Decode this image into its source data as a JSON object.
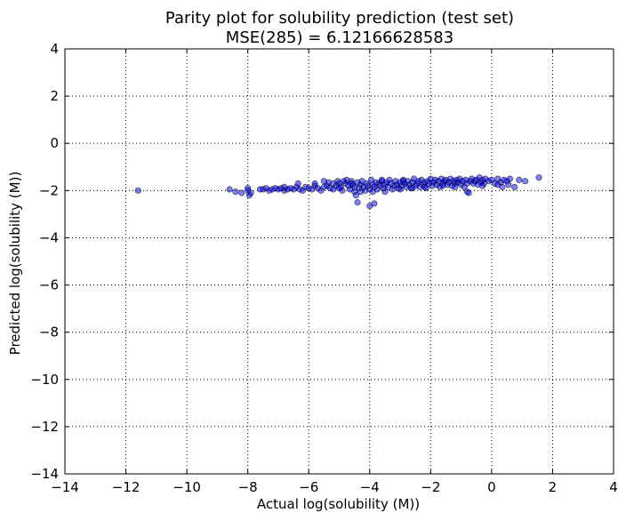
{
  "chart_data": {
    "type": "scatter",
    "title": "Parity plot for solubility prediction (test set)",
    "subtitle": "MSE(285) = 6.12166628583",
    "xlabel": "Actual log(solubility (M))",
    "ylabel": "Predicted log(solubility (M))",
    "xlim": [
      -14,
      4
    ],
    "ylim": [
      -14,
      4
    ],
    "xticks": [
      -14,
      -12,
      -10,
      -8,
      -6,
      -4,
      -2,
      0,
      2,
      4
    ],
    "yticks": [
      -14,
      -12,
      -10,
      -8,
      -6,
      -4,
      -2,
      0,
      2,
      4
    ],
    "xtick_labels": [
      "−14",
      "−12",
      "−10",
      "−8",
      "−6",
      "−4",
      "−2",
      "0",
      "2",
      "4"
    ],
    "ytick_labels": [
      "−14",
      "−12",
      "−10",
      "−8",
      "−6",
      "−4",
      "−2",
      "0",
      "2",
      "4"
    ],
    "grid": true,
    "grid_style": "dotted",
    "marker_color": "#0000ff",
    "marker_alpha": 0.5,
    "edge_color": "#000000",
    "series": [
      {
        "points": [
          [
            -11.6,
            -2.0
          ],
          [
            -8.6,
            -1.95
          ],
          [
            -8.4,
            -2.05
          ],
          [
            -8.2,
            -2.1
          ],
          [
            -8.0,
            -1.9
          ],
          [
            -8.0,
            -2.0
          ],
          [
            -7.95,
            -2.2
          ],
          [
            -7.9,
            -2.1
          ],
          [
            -7.5,
            -1.95
          ],
          [
            -7.4,
            -1.9
          ],
          [
            -7.3,
            -2.0
          ],
          [
            -7.2,
            -1.95
          ],
          [
            -7.1,
            -1.9
          ],
          [
            -7.0,
            -1.95
          ],
          [
            -6.9,
            -1.9
          ],
          [
            -6.8,
            -2.0
          ],
          [
            -6.7,
            -1.95
          ],
          [
            -6.6,
            -1.9
          ],
          [
            -6.5,
            -1.95
          ],
          [
            -6.4,
            -1.85
          ],
          [
            -6.35,
            -1.7
          ],
          [
            -6.3,
            -1.95
          ],
          [
            -6.2,
            -2.0
          ],
          [
            -6.1,
            -1.85
          ],
          [
            -6.0,
            -1.9
          ],
          [
            -5.9,
            -1.95
          ],
          [
            -5.8,
            -1.8
          ],
          [
            -5.7,
            -1.9
          ],
          [
            -5.6,
            -2.0
          ],
          [
            -5.5,
            -1.85
          ],
          [
            -5.4,
            -1.8
          ],
          [
            -5.35,
            -1.65
          ],
          [
            -5.3,
            -1.9
          ],
          [
            -5.2,
            -1.95
          ],
          [
            -5.1,
            -1.8
          ],
          [
            -5.05,
            -1.6
          ],
          [
            -5.0,
            -1.7
          ],
          [
            -4.95,
            -1.85
          ],
          [
            -4.9,
            -2.0
          ],
          [
            -4.8,
            -1.7
          ],
          [
            -4.75,
            -1.55
          ],
          [
            -4.7,
            -1.8
          ],
          [
            -4.65,
            -1.95
          ],
          [
            -4.6,
            -1.6
          ],
          [
            -4.55,
            -1.75
          ],
          [
            -4.5,
            -1.85
          ],
          [
            -4.5,
            -2.05
          ],
          [
            -4.45,
            -2.2
          ],
          [
            -4.4,
            -2.5
          ],
          [
            -4.4,
            -1.65
          ],
          [
            -4.35,
            -1.9
          ],
          [
            -4.3,
            -1.75
          ],
          [
            -4.25,
            -1.6
          ],
          [
            -4.2,
            -1.85
          ],
          [
            -4.15,
            -2.0
          ],
          [
            -4.1,
            -1.7
          ],
          [
            -4.05,
            -1.8
          ],
          [
            -4.0,
            -2.65
          ],
          [
            -4.0,
            -1.95
          ],
          [
            -3.95,
            -1.55
          ],
          [
            -3.9,
            -1.75
          ],
          [
            -3.85,
            -2.55
          ],
          [
            -3.85,
            -1.85
          ],
          [
            -3.8,
            -1.65
          ],
          [
            -3.75,
            -1.95
          ],
          [
            -3.7,
            -1.7
          ],
          [
            -3.65,
            -1.8
          ],
          [
            -3.6,
            -1.6
          ],
          [
            -3.55,
            -1.9
          ],
          [
            -3.5,
            -1.75
          ],
          [
            -3.45,
            -1.65
          ],
          [
            -3.4,
            -1.85
          ],
          [
            -3.35,
            -1.55
          ],
          [
            -3.3,
            -1.7
          ],
          [
            -3.25,
            -1.95
          ],
          [
            -3.2,
            -1.8
          ],
          [
            -3.15,
            -1.6
          ],
          [
            -3.1,
            -1.75
          ],
          [
            -3.05,
            -1.9
          ],
          [
            -3.0,
            -1.65
          ],
          [
            -2.95,
            -1.8
          ],
          [
            -2.9,
            -1.55
          ],
          [
            -2.85,
            -1.7
          ],
          [
            -2.8,
            -1.85
          ],
          [
            -2.75,
            -1.6
          ],
          [
            -2.7,
            -1.75
          ],
          [
            -2.65,
            -1.9
          ],
          [
            -2.6,
            -1.65
          ],
          [
            -2.55,
            -1.5
          ],
          [
            -2.5,
            -1.8
          ],
          [
            -2.45,
            -1.7
          ],
          [
            -2.4,
            -1.6
          ],
          [
            -2.35,
            -1.85
          ],
          [
            -2.3,
            -1.55
          ],
          [
            -2.25,
            -1.75
          ],
          [
            -2.2,
            -1.65
          ],
          [
            -2.15,
            -1.9
          ],
          [
            -2.1,
            -1.6
          ],
          [
            -2.05,
            -1.7
          ],
          [
            -2.0,
            -1.5
          ],
          [
            -1.95,
            -1.8
          ],
          [
            -1.9,
            -1.65
          ],
          [
            -1.85,
            -1.55
          ],
          [
            -1.8,
            -1.75
          ],
          [
            -1.75,
            -1.6
          ],
          [
            -1.7,
            -1.85
          ],
          [
            -1.65,
            -1.5
          ],
          [
            -1.6,
            -1.7
          ],
          [
            -1.55,
            -1.6
          ],
          [
            -1.5,
            -1.55
          ],
          [
            -1.45,
            -1.75
          ],
          [
            -1.4,
            -1.65
          ],
          [
            -1.35,
            -1.5
          ],
          [
            -1.3,
            -1.8
          ],
          [
            -1.25,
            -1.6
          ],
          [
            -1.2,
            -1.7
          ],
          [
            -1.15,
            -1.55
          ],
          [
            -1.1,
            -1.65
          ],
          [
            -1.05,
            -1.5
          ],
          [
            -1.0,
            -1.75
          ],
          [
            -0.95,
            -1.6
          ],
          [
            -0.9,
            -1.85
          ],
          [
            -0.85,
            -1.55
          ],
          [
            -0.8,
            -1.7
          ],
          [
            -0.8,
            -2.05
          ],
          [
            -0.75,
            -2.1
          ],
          [
            -0.7,
            -1.6
          ],
          [
            -0.65,
            -1.5
          ],
          [
            -0.6,
            -1.7
          ],
          [
            -0.55,
            -1.6
          ],
          [
            -0.5,
            -1.55
          ],
          [
            -0.45,
            -1.75
          ],
          [
            -0.4,
            -1.45
          ],
          [
            -0.35,
            -1.65
          ],
          [
            -0.3,
            -1.55
          ],
          [
            -0.25,
            -1.7
          ],
          [
            -0.2,
            -1.5
          ],
          [
            -0.1,
            -1.6
          ],
          [
            0.0,
            -1.55
          ],
          [
            0.1,
            -1.7
          ],
          [
            0.2,
            -1.5
          ],
          [
            0.3,
            -1.65
          ],
          [
            0.35,
            -1.85
          ],
          [
            0.4,
            -1.55
          ],
          [
            0.5,
            -1.6
          ],
          [
            0.55,
            -1.75
          ],
          [
            0.6,
            -1.5
          ],
          [
            0.75,
            -1.85
          ],
          [
            0.9,
            -1.55
          ],
          [
            1.1,
            -1.6
          ],
          [
            1.55,
            -1.45
          ],
          [
            -5.8,
            -1.7
          ],
          [
            -5.5,
            -1.6
          ],
          [
            -5.0,
            -1.9
          ],
          [
            -4.85,
            -1.6
          ],
          [
            -4.3,
            -2.05
          ],
          [
            -3.9,
            -2.05
          ],
          [
            -3.5,
            -2.05
          ],
          [
            -3.0,
            -1.95
          ],
          [
            -2.6,
            -1.9
          ],
          [
            -2.2,
            -1.85
          ],
          [
            -1.6,
            -1.8
          ],
          [
            -1.2,
            -1.85
          ],
          [
            -2.9,
            -1.6
          ],
          [
            -3.6,
            -1.55
          ],
          [
            -4.6,
            -1.7
          ],
          [
            -5.2,
            -1.7
          ],
          [
            -6.8,
            -1.85
          ],
          [
            -7.6,
            -1.95
          ],
          [
            -0.3,
            -1.8
          ],
          [
            0.2,
            -1.75
          ]
        ]
      }
    ]
  }
}
